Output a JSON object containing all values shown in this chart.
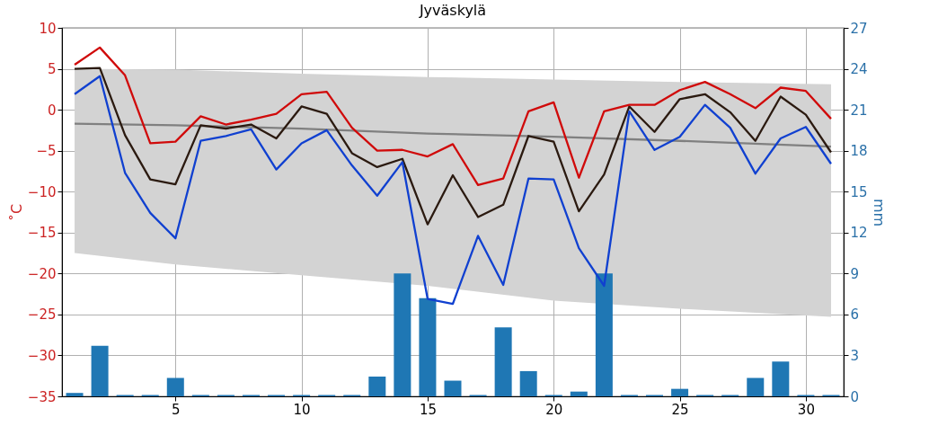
{
  "chart_data": {
    "type": "line",
    "title": "Jyväskylä",
    "ylabel": "˚C",
    "y2label": "mm",
    "xlim": [
      0.5,
      31.5
    ],
    "xticks": [
      5,
      10,
      15,
      20,
      25,
      30
    ],
    "ylim": [
      -35,
      10
    ],
    "yticks": [
      -35,
      -30,
      -25,
      -20,
      -15,
      -10,
      -5,
      0,
      5,
      10
    ],
    "y2lim": [
      0,
      27
    ],
    "y2ticks": [
      0,
      3,
      6,
      9,
      12,
      15,
      18,
      21,
      24,
      27
    ],
    "grid": true,
    "x": [
      1,
      2,
      3,
      4,
      5,
      6,
      7,
      8,
      9,
      10,
      11,
      12,
      13,
      14,
      15,
      16,
      17,
      18,
      19,
      20,
      21,
      22,
      23,
      24,
      25,
      26,
      27,
      28,
      29,
      30,
      31
    ],
    "series": [
      {
        "type": "line",
        "color": "#808080",
        "x": [
          1,
          5,
          10,
          15,
          20,
          25,
          31
        ],
        "values": [
          -1.7,
          -1.9,
          -2.3,
          -2.9,
          -3.3,
          -3.8,
          -4.5
        ],
        "lower": [
          -17.5,
          -18.9,
          -20.2,
          -21.5,
          -23.3,
          -24.3,
          -25.3
        ],
        "upper": [
          5.0,
          4.9,
          4.4,
          4.0,
          3.7,
          3.4,
          3.1
        ]
      },
      {
        "type": "bar",
        "axis": "y2",
        "color": "#1f77b4",
        "values": [
          0.25,
          3.7,
          0.1,
          0.1,
          1.35,
          0.1,
          0.1,
          0.1,
          0.1,
          0.1,
          0.1,
          0.1,
          1.45,
          9.0,
          7.2,
          1.15,
          0.1,
          5.05,
          1.85,
          0.1,
          0.35,
          9.0,
          0.1,
          0.1,
          0.55,
          0.1,
          0.1,
          1.35,
          2.55,
          0.1,
          0.1
        ]
      },
      {
        "color": "#2b1a10",
        "values": [
          5.0,
          5.1,
          -3.1,
          -8.5,
          -9.1,
          -1.9,
          -2.3,
          -1.8,
          -3.5,
          0.4,
          -0.5,
          -5.3,
          -7.0,
          -6.0,
          -14.0,
          -8.0,
          -13.1,
          -11.6,
          -3.2,
          -3.9,
          -12.4,
          -7.9,
          0.4,
          -2.7,
          1.3,
          1.9,
          -0.3,
          -3.8,
          1.6,
          -0.6,
          -5.2
        ]
      },
      {
        "color": "#d00a0a",
        "values": [
          5.5,
          7.6,
          4.2,
          -4.1,
          -3.9,
          -0.8,
          -1.8,
          -1.2,
          -0.5,
          1.9,
          2.2,
          -2.2,
          -5.0,
          -4.9,
          -5.7,
          -4.2,
          -9.2,
          -8.4,
          -0.2,
          0.9,
          -8.3,
          -0.2,
          0.6,
          0.6,
          2.4,
          3.4,
          1.9,
          0.2,
          2.7,
          2.3,
          -1.1
        ]
      },
      {
        "color": "#1040d0",
        "values": [
          1.9,
          4.1,
          -7.7,
          -12.6,
          -15.7,
          -3.8,
          -3.2,
          -2.4,
          -7.3,
          -4.1,
          -2.5,
          -6.8,
          -10.5,
          -6.4,
          -23.1,
          -23.7,
          -15.4,
          -21.4,
          -8.4,
          -8.5,
          -16.9,
          -21.5,
          -0.2,
          -4.9,
          -3.3,
          0.6,
          -2.2,
          -7.8,
          -3.5,
          -2.1,
          -6.6
        ]
      }
    ]
  }
}
